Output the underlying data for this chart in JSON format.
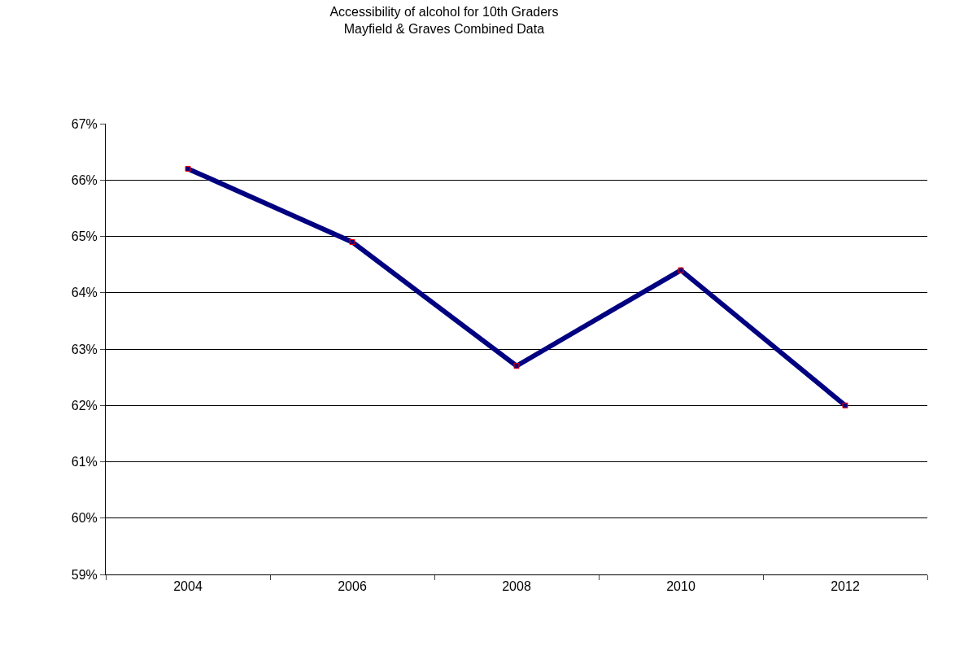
{
  "chart_data": {
    "type": "line",
    "title": "Accessibility of alcohol for 10th Graders\nMayfield & Graves Combined Data",
    "categories": [
      "2004",
      "2006",
      "2008",
      "2010",
      "2012"
    ],
    "series": [
      {
        "color": "#000080",
        "values": [
          66.2,
          64.9,
          62.7,
          64.4,
          62.0
        ]
      }
    ],
    "marker": "square",
    "line_style": "solid",
    "ylim": [
      59,
      67
    ],
    "yticks": [
      {
        "value": 59,
        "label": "59%"
      },
      {
        "value": 60,
        "label": "60%"
      },
      {
        "value": 61,
        "label": "61%"
      },
      {
        "value": 62,
        "label": "62%"
      },
      {
        "value": 63,
        "label": "63%"
      },
      {
        "value": 64,
        "label": "64%"
      },
      {
        "value": 65,
        "label": "65%"
      },
      {
        "value": 66,
        "label": "66%"
      },
      {
        "value": 67,
        "label": "67%"
      }
    ],
    "grid": "y"
  }
}
